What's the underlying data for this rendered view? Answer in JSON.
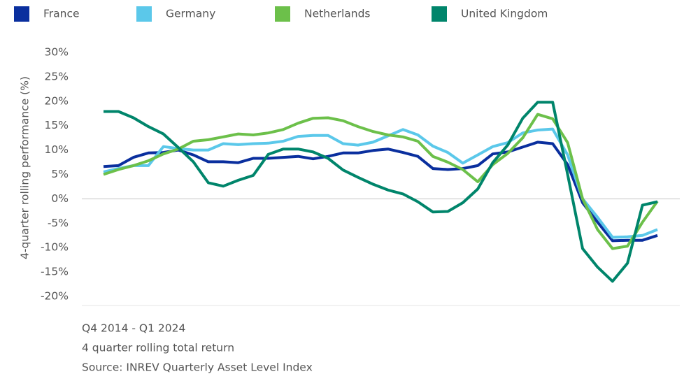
{
  "chart_data": {
    "type": "line",
    "y_label": "4-quarter rolling performance (%)",
    "notes": [
      "Q4 2014 - Q1 2024",
      "4 quarter rolling total return",
      "Source: INREV Quarterly Asset Level Index"
    ],
    "categories": [
      null,
      null,
      null,
      null,
      null,
      null,
      null,
      null,
      null,
      null,
      null,
      null,
      null,
      null,
      null,
      null,
      null,
      null,
      null,
      null,
      null,
      null,
      null,
      null,
      null,
      null,
      null,
      null,
      null,
      null,
      null,
      null,
      null,
      null,
      null,
      null,
      null,
      null
    ],
    "series": [
      {
        "name": "France",
        "color": "#0a2f9e",
        "values": [
          6.6,
          6.8,
          8.5,
          9.4,
          9.5,
          10.0,
          9.0,
          7.6,
          7.6,
          7.4,
          8.3,
          8.3,
          8.5,
          8.7,
          8.2,
          8.7,
          9.4,
          9.4,
          9.9,
          10.2,
          9.5,
          8.7,
          6.2,
          6.0,
          6.2,
          6.8,
          9.2,
          9.6,
          10.6,
          11.6,
          11.3,
          7.0,
          -0.8,
          -4.8,
          -8.6,
          -8.5,
          -8.5,
          -7.5
        ]
      },
      {
        "name": "Germany",
        "color": "#5bc8ea",
        "values": [
          5.5,
          6.2,
          6.8,
          6.8,
          10.7,
          10.3,
          10.0,
          10.0,
          11.3,
          11.1,
          11.3,
          11.4,
          11.8,
          12.8,
          13.0,
          13.0,
          11.3,
          11.0,
          11.6,
          12.9,
          14.2,
          13.1,
          10.8,
          9.5,
          7.3,
          9.0,
          10.7,
          11.5,
          13.5,
          14.1,
          14.3,
          9.0,
          0.0,
          -3.8,
          -7.9,
          -7.8,
          -7.5,
          -6.3
        ]
      },
      {
        "name": "Netherlands",
        "color": "#6cc04a",
        "values": [
          5.0,
          6.0,
          6.8,
          7.8,
          9.2,
          10.2,
          11.8,
          12.1,
          12.7,
          13.3,
          13.1,
          13.5,
          14.2,
          15.5,
          16.5,
          16.6,
          16.0,
          14.8,
          13.8,
          13.1,
          12.7,
          11.8,
          8.7,
          7.5,
          6.0,
          3.5,
          7.0,
          9.3,
          12.5,
          17.3,
          16.4,
          11.5,
          0.0,
          -6.3,
          -10.2,
          -9.7,
          -4.8,
          -0.5
        ]
      },
      {
        "name": "United Kingdom",
        "color": "#00856b",
        "values": [
          17.9,
          17.9,
          16.6,
          14.8,
          13.3,
          10.5,
          7.6,
          3.3,
          2.6,
          3.8,
          4.8,
          9.1,
          10.2,
          10.2,
          9.6,
          8.3,
          5.9,
          4.4,
          3.0,
          1.8,
          1.0,
          -0.6,
          -2.7,
          -2.6,
          -0.8,
          2.0,
          7.4,
          11.0,
          16.5,
          19.8,
          19.8,
          5.0,
          -10.2,
          -14.0,
          -16.9,
          -13.2,
          -1.3,
          -0.6
        ]
      }
    ],
    "ylim": [
      -20,
      30
    ],
    "yticks": [
      {
        "value": 30,
        "label": "30%"
      },
      {
        "value": 25,
        "label": "25%"
      },
      {
        "value": 20,
        "label": "20%"
      },
      {
        "value": 15,
        "label": "15%"
      },
      {
        "value": 10,
        "label": "10%"
      },
      {
        "value": 5,
        "label": "5%"
      },
      {
        "value": 0,
        "label": "0%"
      },
      {
        "value": -5,
        "label": "-5%"
      },
      {
        "value": -10,
        "label": "-10%"
      },
      {
        "value": -15,
        "label": "-15%"
      },
      {
        "value": -20,
        "label": "-20%"
      }
    ],
    "legend": "top"
  }
}
